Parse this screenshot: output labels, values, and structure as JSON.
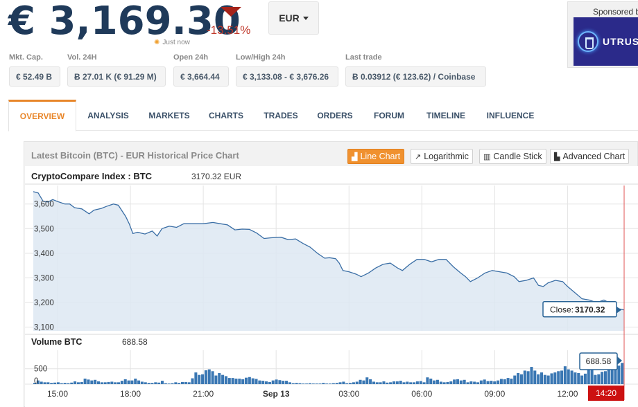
{
  "header": {
    "price": "€ 3,169.30",
    "change_pct": "-13.51%",
    "updated": "Just now",
    "currency": "EUR"
  },
  "sponsor": {
    "label": "Sponsored by",
    "brand": "UTRUST"
  },
  "stats": [
    {
      "label": "Mkt. Cap.",
      "value": "€ 52.49 B"
    },
    {
      "label": "Vol. 24H",
      "value": "Ƀ 27.01 K (€ 91.29 M)"
    },
    {
      "label": "Open 24h",
      "value": "€ 3,664.44"
    },
    {
      "label": "Low/High 24h",
      "value": "€ 3,133.08 - € 3,676.26"
    },
    {
      "label": "Last trade",
      "value": "Ƀ 0.03912 (€ 123.62) / Coinbase"
    }
  ],
  "tabs": [
    {
      "label": "OVERVIEW",
      "active": true
    },
    {
      "label": "ANALYSIS"
    },
    {
      "label": "MARKETS"
    },
    {
      "label": "CHARTS"
    },
    {
      "label": "TRADES"
    },
    {
      "label": "ORDERS"
    },
    {
      "label": "FORUM"
    },
    {
      "label": "TIMELINE"
    },
    {
      "label": "INFLUENCE"
    }
  ],
  "chart_panel": {
    "title": "Latest Bitcoin (BTC) - EUR Historical Price Chart",
    "buttons": [
      {
        "label": "Line Chart",
        "active": true
      },
      {
        "label": "Logarithmic"
      },
      {
        "label": "Candle Stick"
      },
      {
        "label": "Advanced Chart"
      }
    ]
  },
  "chart_data": [
    {
      "type": "area",
      "title": "CryptoCompare Index : BTC",
      "current_label": "3170.32 EUR",
      "close_label": "Close:",
      "close_value": "3170.32",
      "ylim": [
        3085,
        3675
      ],
      "yticks": [
        3100,
        3200,
        3300,
        3400,
        3500,
        3600
      ],
      "ytick_labels": [
        "3,100",
        "3,200",
        "3,300",
        "3,400",
        "3,500",
        "3,600"
      ],
      "grid": true,
      "x_start": "14:00",
      "x_end": "14:20",
      "x_end_label": "14:20",
      "xticks": [
        "15:00",
        "18:00",
        "21:00",
        "Sep 13",
        "03:00",
        "06:00",
        "09:00",
        "12:00"
      ],
      "series": [
        {
          "points": [
            [
              0.0,
              3650
            ],
            [
              0.2,
              3645
            ],
            [
              0.4,
              3612
            ],
            [
              0.6,
              3608
            ],
            [
              0.8,
              3618
            ],
            [
              1.0,
              3610
            ],
            [
              1.3,
              3600
            ],
            [
              1.5,
              3600
            ],
            [
              1.7,
              3585
            ],
            [
              2.0,
              3580
            ],
            [
              2.3,
              3560
            ],
            [
              2.5,
              3575
            ],
            [
              2.8,
              3582
            ],
            [
              3.0,
              3590
            ],
            [
              3.3,
              3600
            ],
            [
              3.5,
              3595
            ],
            [
              3.8,
              3550
            ],
            [
              3.95,
              3520
            ],
            [
              4.1,
              3480
            ],
            [
              4.3,
              3485
            ],
            [
              4.6,
              3478
            ],
            [
              4.9,
              3490
            ],
            [
              5.1,
              3470
            ],
            [
              5.3,
              3500
            ],
            [
              5.6,
              3510
            ],
            [
              5.9,
              3505
            ],
            [
              6.2,
              3520
            ],
            [
              6.6,
              3520
            ],
            [
              7.0,
              3520
            ],
            [
              7.4,
              3525
            ],
            [
              7.7,
              3520
            ],
            [
              8.0,
              3515
            ],
            [
              8.3,
              3495
            ],
            [
              8.6,
              3498
            ],
            [
              8.9,
              3497
            ],
            [
              9.2,
              3482
            ],
            [
              9.5,
              3460
            ],
            [
              9.8,
              3463
            ],
            [
              10.2,
              3465
            ],
            [
              10.5,
              3455
            ],
            [
              10.8,
              3458
            ],
            [
              11.1,
              3440
            ],
            [
              11.4,
              3425
            ],
            [
              11.7,
              3400
            ],
            [
              12.0,
              3380
            ],
            [
              12.2,
              3382
            ],
            [
              12.45,
              3378
            ],
            [
              12.6,
              3360
            ],
            [
              12.75,
              3330
            ],
            [
              13.0,
              3325
            ],
            [
              13.3,
              3315
            ],
            [
              13.5,
              3305
            ],
            [
              13.8,
              3320
            ],
            [
              14.1,
              3340
            ],
            [
              14.4,
              3355
            ],
            [
              14.7,
              3360
            ],
            [
              15.0,
              3340
            ],
            [
              15.2,
              3330
            ],
            [
              15.5,
              3355
            ],
            [
              15.8,
              3375
            ],
            [
              16.1,
              3375
            ],
            [
              16.4,
              3365
            ],
            [
              16.7,
              3375
            ],
            [
              17.0,
              3375
            ],
            [
              17.3,
              3345
            ],
            [
              17.6,
              3320
            ],
            [
              17.8,
              3305
            ],
            [
              18.0,
              3285
            ],
            [
              18.3,
              3300
            ],
            [
              18.6,
              3320
            ],
            [
              18.9,
              3330
            ],
            [
              19.2,
              3325
            ],
            [
              19.5,
              3320
            ],
            [
              19.8,
              3305
            ],
            [
              20.0,
              3285
            ],
            [
              20.3,
              3290
            ],
            [
              20.6,
              3300
            ],
            [
              20.8,
              3270
            ],
            [
              21.0,
              3265
            ],
            [
              21.2,
              3280
            ],
            [
              21.5,
              3290
            ],
            [
              21.8,
              3285
            ],
            [
              22.0,
              3265
            ],
            [
              22.3,
              3240
            ],
            [
              22.6,
              3215
            ],
            [
              22.9,
              3210
            ],
            [
              23.2,
              3200
            ],
            [
              23.5,
              3210
            ],
            [
              23.8,
              3195
            ],
            [
              24.1,
              3175
            ],
            [
              24.33,
              3170
            ]
          ]
        }
      ]
    },
    {
      "type": "bar",
      "title": "Volume BTC",
      "current_label": "688.58",
      "callout_value": "688.58",
      "ylim": [
        0,
        1100
      ],
      "yticks": [
        0,
        500
      ],
      "ytick_labels": [
        "0",
        "500"
      ],
      "values": [
        40,
        120,
        80,
        60,
        60,
        40,
        50,
        60,
        30,
        40,
        30,
        50,
        90,
        60,
        70,
        180,
        150,
        120,
        140,
        90,
        60,
        60,
        70,
        80,
        60,
        60,
        110,
        160,
        120,
        120,
        180,
        120,
        80,
        60,
        40,
        40,
        60,
        50,
        110,
        30,
        20,
        30,
        60,
        40,
        70,
        70,
        60,
        190,
        380,
        300,
        320,
        450,
        480,
        420,
        280,
        360,
        300,
        260,
        200,
        200,
        180,
        180,
        160,
        210,
        230,
        190,
        170,
        120,
        110,
        90,
        70,
        120,
        150,
        130,
        110,
        110,
        60,
        30,
        40,
        30,
        20,
        20,
        30,
        20,
        20,
        20,
        40,
        20,
        20,
        30,
        40,
        60,
        80,
        30,
        40,
        60,
        80,
        140,
        120,
        220,
        160,
        80,
        60,
        60,
        90,
        50,
        60,
        90,
        90,
        110,
        60,
        80,
        60,
        60,
        90,
        100,
        60,
        220,
        180,
        120,
        140,
        80,
        60,
        70,
        90,
        150,
        160,
        120,
        140,
        60,
        90,
        80,
        60,
        120,
        150,
        100,
        110,
        90,
        120,
        170,
        160,
        200,
        180,
        280,
        360,
        320,
        440,
        420,
        560,
        440,
        320,
        380,
        300,
        280,
        350,
        380,
        420,
        440,
        580,
        480,
        440,
        380,
        360,
        280,
        340,
        700,
        520,
        300,
        320,
        400,
        420,
        480,
        520,
        560,
        600,
        690
      ]
    }
  ]
}
